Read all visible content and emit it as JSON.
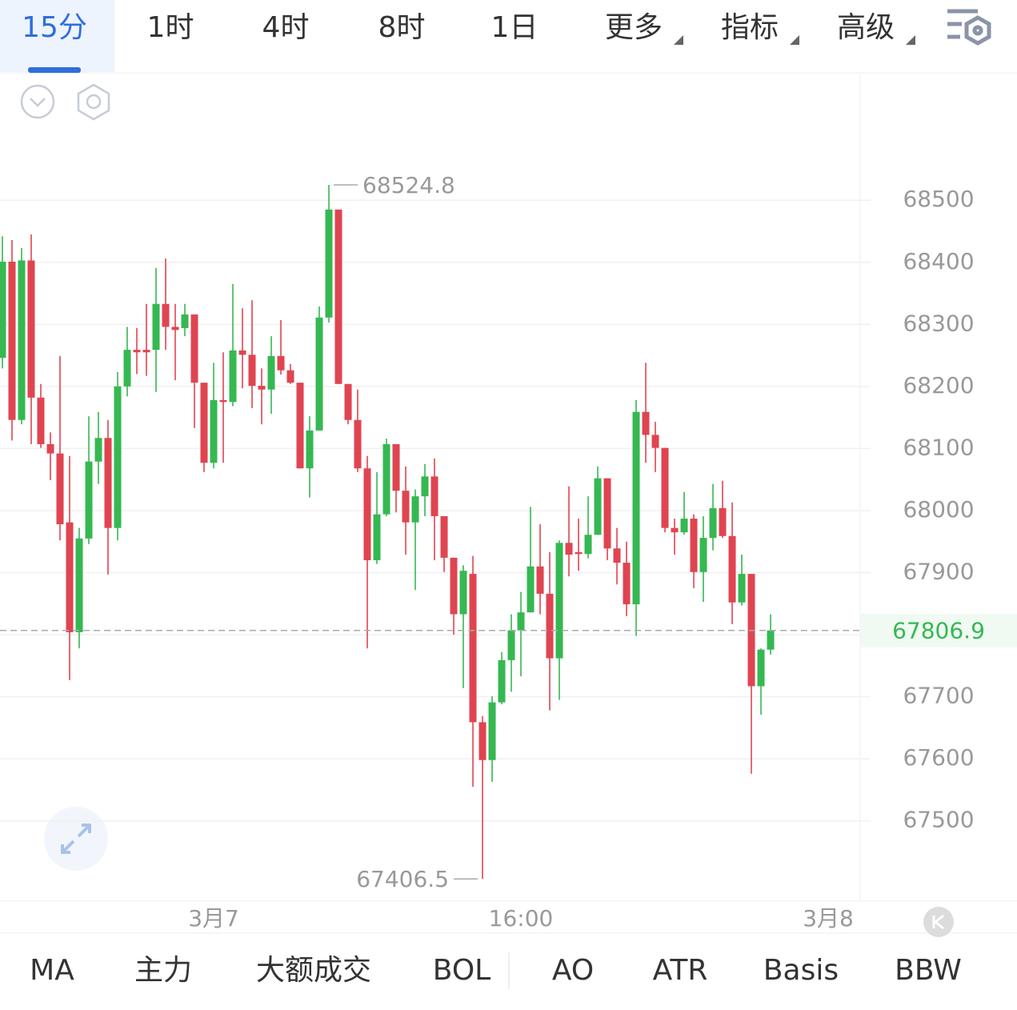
{
  "tabs": [
    "15分",
    "1时",
    "4时",
    "8时",
    "1日",
    "更多",
    "指标",
    "高级"
  ],
  "active_tab": 0,
  "indicator_tabs": [
    "MA",
    "主力",
    "大额成交",
    "BOL",
    "AO",
    "ATR",
    "Basis",
    "BBW"
  ],
  "chart_data": {
    "type": "candlestick",
    "open": [
      68246,
      68401,
      68146,
      68403,
      68182,
      68107,
      68092,
      67981,
      67804,
      67955,
      68079,
      68117,
      67972,
      68200,
      68259,
      68259,
      68259,
      68333,
      68296,
      68294,
      68316,
      68206,
      68077,
      68178,
      68175,
      68258,
      68251,
      68201,
      68195,
      68249,
      68226,
      68206,
      68068,
      68129,
      68311,
      68485,
      68204,
      68146,
      68068,
      67920,
      67994,
      68107,
      68032,
      67981,
      68023,
      68055,
      67991,
      67924,
      67833,
      67898,
      67659,
      67598,
      67691,
      67759,
      67807,
      67836,
      67910,
      67866,
      67762,
      67948,
      67933,
      67930,
      67961,
      68052,
      67939,
      67916,
      67849,
      68159,
      68122,
      68101,
      67972,
      67965,
      67987,
      67901,
      67956,
      68004,
      67959,
      67852,
      67898,
      67717,
      67776
    ],
    "high": [
      68442,
      68436,
      68423,
      68445,
      68204,
      68126,
      68249,
      68088,
      67972,
      68152,
      68159,
      68146,
      68223,
      68296,
      68294,
      68333,
      68391,
      68406,
      68333,
      68333,
      68316,
      68206,
      68238,
      68255,
      68365,
      68326,
      68339,
      68229,
      68281,
      68307,
      68236,
      68206,
      68152,
      68329,
      68524.8,
      68485,
      68204,
      68195,
      68088,
      68062,
      68116,
      68107,
      68071,
      68034,
      68075,
      68084,
      67991,
      67924,
      67912,
      67927,
      67669,
      67701,
      67772,
      67833,
      67869,
      68006,
      67978,
      67933,
      67952,
      68039,
      67987,
      68023,
      68071,
      68052,
      67972,
      67950,
      68178,
      68238,
      68143,
      68101,
      67987,
      68030,
      67994,
      67991,
      68043,
      68048,
      68013,
      67929,
      67898,
      67778,
      67833
    ],
    "low": [
      68229,
      68113,
      68139,
      68107,
      68101,
      68049,
      67952,
      67727,
      67778,
      67946,
      68043,
      67897,
      67952,
      68184,
      68220,
      68217,
      68191,
      68259,
      68210,
      68281,
      68133,
      68062,
      68068,
      68077,
      68168,
      68197,
      68165,
      68139,
      68156,
      68219,
      68204,
      68068,
      68021,
      68129,
      68303,
      68204,
      68139,
      68062,
      67778,
      67914,
      67991,
      67997,
      67929,
      67872,
      67991,
      67920,
      67901,
      67800,
      67714,
      67555,
      67406.5,
      67563,
      67688,
      67708,
      67733,
      67836,
      67833,
      67678,
      67695,
      67894,
      67903,
      67923,
      67961,
      67920,
      67881,
      67830,
      67798,
      68077,
      68062,
      67965,
      67929,
      67961,
      67875,
      67853,
      67936,
      67956,
      67817,
      67847,
      67576,
      67671,
      67768
    ],
    "close": [
      68401,
      68146,
      68403,
      68182,
      68107,
      68092,
      67978,
      67804,
      67955,
      68079,
      68117,
      67972,
      68200,
      68259,
      68255,
      68255,
      68333,
      68296,
      68291,
      68316,
      68206,
      68077,
      68178,
      68175,
      68258,
      68251,
      68201,
      68195,
      68249,
      68226,
      68206,
      68068,
      68129,
      68311,
      68485,
      68204,
      68146,
      68068,
      67920,
      67994,
      68107,
      68032,
      67981,
      68023,
      68055,
      67991,
      67924,
      67833,
      67903,
      67659,
      67598,
      67691,
      67759,
      67807,
      67836,
      67910,
      67866,
      67762,
      67948,
      67929,
      67930,
      67961,
      68052,
      67939,
      67916,
      67849,
      68159,
      68122,
      68101,
      67972,
      67965,
      67987,
      67901,
      67956,
      68004,
      67959,
      67852,
      67898,
      67717,
      67776,
      67806.9
    ],
    "colors": {
      "up": "#35b852",
      "down": "#e04451"
    },
    "ylim": [
      67372,
      68704
    ],
    "yticks": [
      68500,
      68400,
      68300,
      68200,
      68100,
      68000,
      67900,
      67800,
      67700,
      67600,
      67500
    ],
    "xlim": [
      -0.25,
      89.33
    ],
    "xticks": [
      {
        "value": 22,
        "label": "3月7"
      },
      {
        "value": 54,
        "label": "16:00"
      },
      {
        "value": 86,
        "label": "3月8"
      }
    ],
    "grid": true,
    "high_label": "68524.8",
    "low_label": "67406.5",
    "last_label": "67806.9"
  }
}
